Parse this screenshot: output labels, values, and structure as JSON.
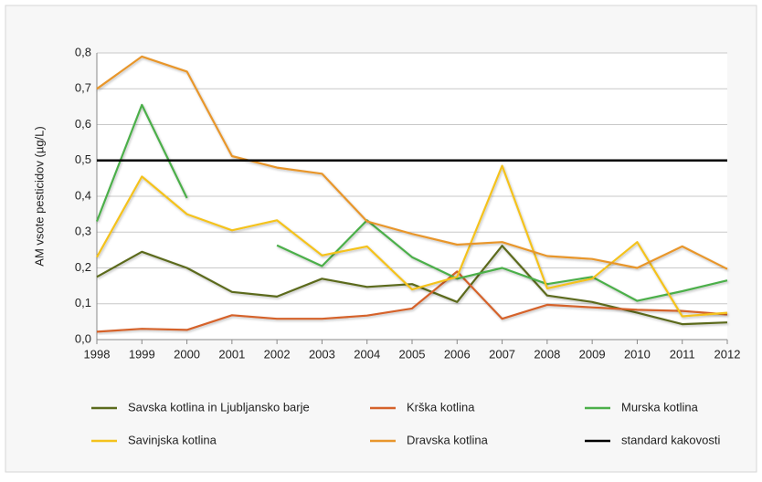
{
  "chart_data": {
    "type": "line",
    "y_label": "AM vsote pesticidov (µg/L)",
    "categories": [
      "1998",
      "1999",
      "2000",
      "2001",
      "2002",
      "2003",
      "2004",
      "2005",
      "2006",
      "2007",
      "2008",
      "2009",
      "2010",
      "2011",
      "2012"
    ],
    "ylim": [
      0,
      0.8
    ],
    "yticks": [
      {
        "value": 0,
        "label": "0,0"
      },
      {
        "value": 0.1,
        "label": "0,1"
      },
      {
        "value": 0.2,
        "label": "0,2"
      },
      {
        "value": 0.3,
        "label": "0,3"
      },
      {
        "value": 0.4,
        "label": "0,4"
      },
      {
        "value": 0.5,
        "label": "0,5"
      },
      {
        "value": 0.6,
        "label": "0,6"
      },
      {
        "value": 0.7,
        "label": "0,7"
      },
      {
        "value": 0.8,
        "label": "0,8"
      }
    ],
    "grid": true,
    "legend": "bottom",
    "series": [
      {
        "name": "Savska kotlina in Ljubljansko barje",
        "color": "#5b6b1d",
        "values": [
          0.175,
          0.245,
          0.2,
          0.133,
          0.12,
          0.17,
          0.147,
          0.155,
          0.105,
          0.262,
          0.123,
          0.105,
          0.075,
          0.043,
          0.048
        ]
      },
      {
        "name": "Krška kotlina",
        "color": "#d5622a",
        "values": [
          0.022,
          0.03,
          0.027,
          0.068,
          0.058,
          0.058,
          0.067,
          0.087,
          0.19,
          0.058,
          0.097,
          0.09,
          0.083,
          0.08,
          0.07
        ]
      },
      {
        "name": "Murska kotlina",
        "color": "#4caf4a",
        "values": [
          0.33,
          0.655,
          0.395,
          null,
          0.263,
          0.205,
          0.333,
          0.23,
          0.17,
          0.2,
          0.155,
          0.175,
          0.108,
          0.135,
          0.165
        ]
      },
      {
        "name": "Savinjska kotlina",
        "color": "#f4c21c",
        "values": [
          0.23,
          0.455,
          0.35,
          0.305,
          0.333,
          0.235,
          0.26,
          0.14,
          0.175,
          0.485,
          0.143,
          0.17,
          0.272,
          0.065,
          0.075
        ]
      },
      {
        "name": "Dravska kotlina",
        "color": "#e8962c",
        "values": [
          0.7,
          0.79,
          0.748,
          0.512,
          0.48,
          0.463,
          0.33,
          0.295,
          0.265,
          0.272,
          0.233,
          0.225,
          0.2,
          0.26,
          0.197
        ]
      },
      {
        "name": "standard kakovosti",
        "color": "#000000",
        "values": [
          0.5,
          0.5,
          0.5,
          0.5,
          0.5,
          0.5,
          0.5,
          0.5,
          0.5,
          0.5,
          0.5,
          0.5,
          0.5,
          0.5,
          0.5
        ]
      }
    ]
  }
}
